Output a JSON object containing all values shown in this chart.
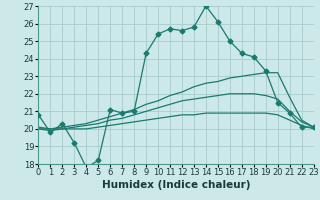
{
  "xlabel": "Humidex (Indice chaleur)",
  "bg_color": "#cce8e8",
  "grid_color": "#aacccc",
  "line_color": "#1a7a6e",
  "x_min": 0,
  "x_max": 23,
  "y_min": 18,
  "y_max": 27,
  "series": [
    {
      "x": [
        0,
        1,
        2,
        3,
        4,
        5,
        6,
        7,
        8,
        9,
        10,
        11,
        12,
        13,
        14,
        15,
        16,
        17,
        18,
        19,
        20,
        21,
        22,
        23
      ],
      "y": [
        20.8,
        19.8,
        20.3,
        19.2,
        17.8,
        18.2,
        21.1,
        20.9,
        21.0,
        24.3,
        25.4,
        25.7,
        25.6,
        25.8,
        27.0,
        26.1,
        25.0,
        24.3,
        24.1,
        23.3,
        21.5,
        20.9,
        20.1,
        20.1
      ],
      "marker": "D",
      "markersize": 2.5
    },
    {
      "x": [
        0,
        1,
        2,
        3,
        4,
        5,
        6,
        7,
        8,
        9,
        10,
        11,
        12,
        13,
        14,
        15,
        16,
        17,
        18,
        19,
        20,
        21,
        22,
        23
      ],
      "y": [
        20.1,
        20.0,
        20.1,
        20.2,
        20.3,
        20.5,
        20.7,
        20.9,
        21.1,
        21.4,
        21.6,
        21.9,
        22.1,
        22.4,
        22.6,
        22.7,
        22.9,
        23.0,
        23.1,
        23.2,
        23.2,
        21.8,
        20.5,
        20.1
      ],
      "marker": null,
      "markersize": 0
    },
    {
      "x": [
        0,
        1,
        2,
        3,
        4,
        5,
        6,
        7,
        8,
        9,
        10,
        11,
        12,
        13,
        14,
        15,
        16,
        17,
        18,
        19,
        20,
        21,
        22,
        23
      ],
      "y": [
        20.0,
        20.0,
        20.0,
        20.1,
        20.2,
        20.3,
        20.5,
        20.6,
        20.8,
        21.0,
        21.2,
        21.4,
        21.6,
        21.7,
        21.8,
        21.9,
        22.0,
        22.0,
        22.0,
        21.9,
        21.7,
        21.0,
        20.4,
        20.1
      ],
      "marker": null,
      "markersize": 0
    },
    {
      "x": [
        0,
        1,
        2,
        3,
        4,
        5,
        6,
        7,
        8,
        9,
        10,
        11,
        12,
        13,
        14,
        15,
        16,
        17,
        18,
        19,
        20,
        21,
        22,
        23
      ],
      "y": [
        20.0,
        19.9,
        20.0,
        20.0,
        20.0,
        20.1,
        20.2,
        20.3,
        20.4,
        20.5,
        20.6,
        20.7,
        20.8,
        20.8,
        20.9,
        20.9,
        20.9,
        20.9,
        20.9,
        20.9,
        20.8,
        20.5,
        20.2,
        20.0
      ],
      "marker": null,
      "markersize": 0
    }
  ],
  "tick_fontsize": 6,
  "label_fontsize": 7.5
}
